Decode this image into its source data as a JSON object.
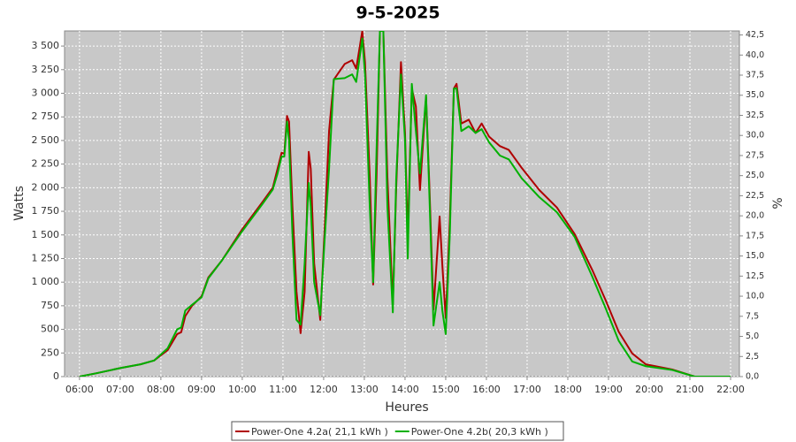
{
  "chart_data": {
    "type": "line",
    "title": "9-5-2025",
    "x_label": "Heures",
    "y_label": "Watts",
    "y2_label": "%",
    "x": [
      "06:00",
      "06:26",
      "07:00",
      "07:30",
      "07:50",
      "08:10",
      "08:24",
      "08:30",
      "08:36",
      "08:46",
      "09:00",
      "09:10",
      "09:30",
      "10:00",
      "10:30",
      "10:45",
      "10:52",
      "10:58",
      "11:02",
      "11:06",
      "11:09",
      "11:14",
      "11:20",
      "11:26",
      "11:32",
      "11:38",
      "11:41",
      "11:46",
      "11:55",
      "12:01",
      "12:08",
      "12:15",
      "12:31",
      "12:42",
      "12:48",
      "12:57",
      "13:01",
      "13:08",
      "13:13",
      "13:18",
      "13:23",
      "13:28",
      "13:34",
      "13:42",
      "13:47",
      "13:54",
      "14:00",
      "14:04",
      "14:10",
      "14:16",
      "14:22",
      "14:31",
      "14:36",
      "14:42",
      "14:51",
      "14:55",
      "15:00",
      "15:06",
      "15:12",
      "15:16",
      "15:23",
      "15:34",
      "15:44",
      "15:53",
      "16:04",
      "16:20",
      "16:33",
      "16:52",
      "17:18",
      "17:44",
      "18:10",
      "18:36",
      "18:56",
      "19:15",
      "19:35",
      "19:55",
      "20:34",
      "21:07",
      "22:00"
    ],
    "series": [
      {
        "name": "Power-One 4.2a( 21,1 kWh )",
        "color": "#b00000",
        "values": [
          0,
          37,
          90,
          130,
          170,
          280,
          450,
          470,
          640,
          750,
          850,
          1050,
          1230,
          1560,
          1850,
          2000,
          2200,
          2370,
          2360,
          2760,
          2700,
          1800,
          900,
          460,
          900,
          2380,
          2200,
          1200,
          600,
          1500,
          2600,
          3145,
          3310,
          3350,
          3260,
          3660,
          3330,
          2115,
          975,
          2115,
          3660,
          3660,
          2115,
          760,
          2000,
          3330,
          2580,
          1460,
          3050,
          2860,
          1975,
          2960,
          2000,
          710,
          1695,
          1180,
          620,
          1650,
          3050,
          3100,
          2680,
          2720,
          2580,
          2680,
          2540,
          2440,
          2400,
          2210,
          1975,
          1790,
          1510,
          1130,
          805,
          475,
          245,
          130,
          75,
          0,
          0
        ]
      },
      {
        "name": "Power-One 4.2b( 20,3 kWh )",
        "color": "#00b000",
        "values": [
          0,
          37,
          90,
          130,
          170,
          300,
          500,
          520,
          700,
          760,
          840,
          1040,
          1230,
          1540,
          1830,
          1980,
          2150,
          2330,
          2330,
          2700,
          2500,
          1500,
          600,
          550,
          1200,
          2050,
          1800,
          1000,
          650,
          1400,
          2200,
          3150,
          3160,
          3200,
          3120,
          3580,
          3200,
          1800,
          1000,
          2400,
          3660,
          3660,
          1800,
          680,
          2100,
          3200,
          2500,
          1250,
          3100,
          2600,
          2150,
          2980,
          1900,
          540,
          1000,
          700,
          450,
          1500,
          3050,
          3050,
          2600,
          2650,
          2580,
          2620,
          2480,
          2340,
          2300,
          2100,
          1900,
          1740,
          1480,
          1060,
          720,
          380,
          160,
          110,
          70,
          0,
          0
        ]
      }
    ],
    "xlim": [
      "05:38",
      "22:13"
    ],
    "xticks": [
      "06:00",
      "07:00",
      "08:00",
      "09:00",
      "10:00",
      "11:00",
      "12:00",
      "13:00",
      "14:00",
      "15:00",
      "16:00",
      "17:00",
      "18:00",
      "19:00",
      "20:00",
      "21:00",
      "22:00"
    ],
    "ylim": [
      0,
      3660
    ],
    "yticks": [
      0,
      250,
      500,
      750,
      {
        "value": 1000,
        "label": "1 000"
      },
      {
        "value": 1250,
        "label": "1 250"
      },
      {
        "value": 1500,
        "label": "1 500"
      },
      {
        "value": 1750,
        "label": "1 750"
      },
      {
        "value": 2000,
        "label": "2 000"
      },
      {
        "value": 2250,
        "label": "2 250"
      },
      {
        "value": 2500,
        "label": "2 500"
      },
      {
        "value": 2750,
        "label": "2 750"
      },
      {
        "value": 3000,
        "label": "3 000"
      },
      {
        "value": 3250,
        "label": "3 250"
      },
      {
        "value": 3500,
        "label": "3 500"
      }
    ],
    "y2lim": [
      0,
      43
    ],
    "y2ticks": [
      {
        "value": 0,
        "label": "0,0"
      },
      {
        "value": 2.5,
        "label": "2,5"
      },
      {
        "value": 5,
        "label": "5,0"
      },
      {
        "value": 7.5,
        "label": "7,5"
      },
      {
        "value": 10,
        "label": "10,0"
      },
      {
        "value": 12.5,
        "label": "12,5"
      },
      {
        "value": 15,
        "label": "15,0"
      },
      {
        "value": 17.5,
        "label": "17,5"
      },
      {
        "value": 20,
        "label": "20,0"
      },
      {
        "value": 22.5,
        "label": "22,5"
      },
      {
        "value": 25,
        "label": "25,0"
      },
      {
        "value": 27.5,
        "label": "27,5"
      },
      {
        "value": 30,
        "label": "30,0"
      },
      {
        "value": 32.5,
        "label": "32,5"
      },
      {
        "value": 35,
        "label": "35,0"
      },
      {
        "value": 37.5,
        "label": "37,5"
      },
      {
        "value": 40,
        "label": "40,0"
      },
      {
        "value": 42.5,
        "label": "42,5"
      }
    ],
    "grid": true,
    "legend": "bottom"
  }
}
